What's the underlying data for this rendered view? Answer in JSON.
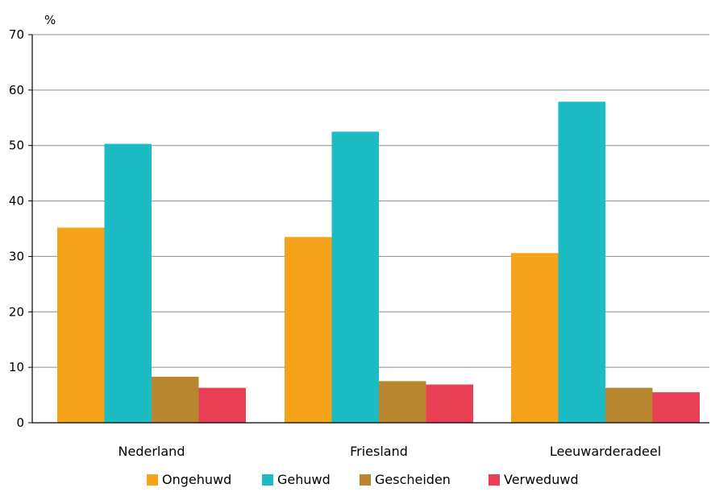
{
  "chart_data": {
    "type": "bar",
    "unit_label": "%",
    "categories": [
      "Nederland",
      "Friesland",
      "Leeuwarderadeel"
    ],
    "series": [
      {
        "name": "Ongehuwd",
        "color": "#F5A31B",
        "values": [
          35.2,
          33.5,
          30.6
        ]
      },
      {
        "name": "Gehuwd",
        "color": "#1DBBC4",
        "values": [
          50.3,
          52.5,
          57.9
        ]
      },
      {
        "name": "Gescheiden",
        "color": "#B98630",
        "values": [
          8.3,
          7.5,
          6.3
        ]
      },
      {
        "name": "Verweduwd",
        "color": "#E83F55",
        "values": [
          6.3,
          6.9,
          5.5
        ]
      }
    ],
    "ylim": [
      0,
      70
    ],
    "yticks": [
      0,
      10,
      20,
      30,
      40,
      50,
      60,
      70
    ],
    "grid": true,
    "legend_position": "bottom"
  }
}
